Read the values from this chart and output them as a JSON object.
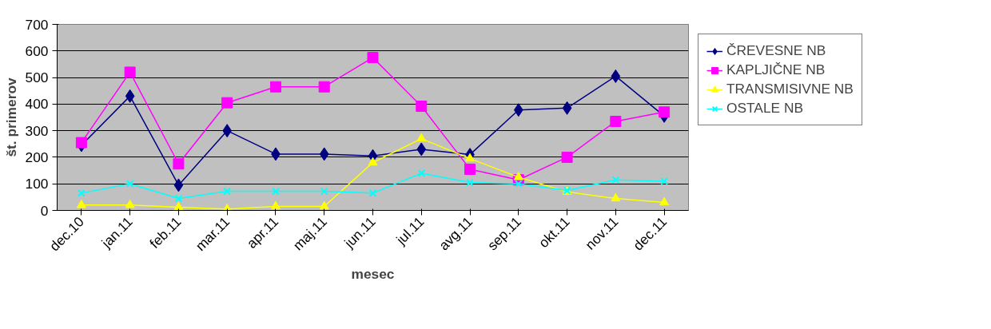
{
  "chart_data": {
    "type": "line",
    "xlabel": "mesec",
    "ylabel": "št. primerov",
    "categories": [
      "dec.10",
      "jan.11",
      "feb.11",
      "mar.11",
      "apr.11",
      "maj.11",
      "jun.11",
      "jul.11",
      "avg.11",
      "sep.11",
      "okt.11",
      "nov.11",
      "dec.11"
    ],
    "series": [
      {
        "name": "ČREVESNE NB",
        "color": "#000080",
        "marker": "diamond",
        "values": [
          245,
          430,
          95,
          300,
          212,
          212,
          205,
          230,
          210,
          378,
          385,
          505,
          355
        ]
      },
      {
        "name": "KAPLJIČNE NB",
        "color": "#ff00ff",
        "marker": "square",
        "values": [
          255,
          520,
          175,
          405,
          465,
          465,
          575,
          392,
          155,
          115,
          200,
          335,
          370
        ]
      },
      {
        "name": "TRANSMISIVNE NB",
        "color": "#ffff00",
        "marker": "triangle",
        "values": [
          20,
          20,
          12,
          5,
          15,
          15,
          180,
          270,
          195,
          125,
          70,
          45,
          30
        ]
      },
      {
        "name": "OSTALE NB",
        "color": "#00ffff",
        "marker": "cross",
        "values": [
          65,
          100,
          45,
          72,
          72,
          72,
          65,
          140,
          105,
          100,
          75,
          115,
          110
        ]
      }
    ],
    "ylim": [
      0,
      700
    ],
    "yticks": [
      0,
      100,
      200,
      300,
      400,
      500,
      600,
      700
    ],
    "grid": "y",
    "legend": "right"
  }
}
